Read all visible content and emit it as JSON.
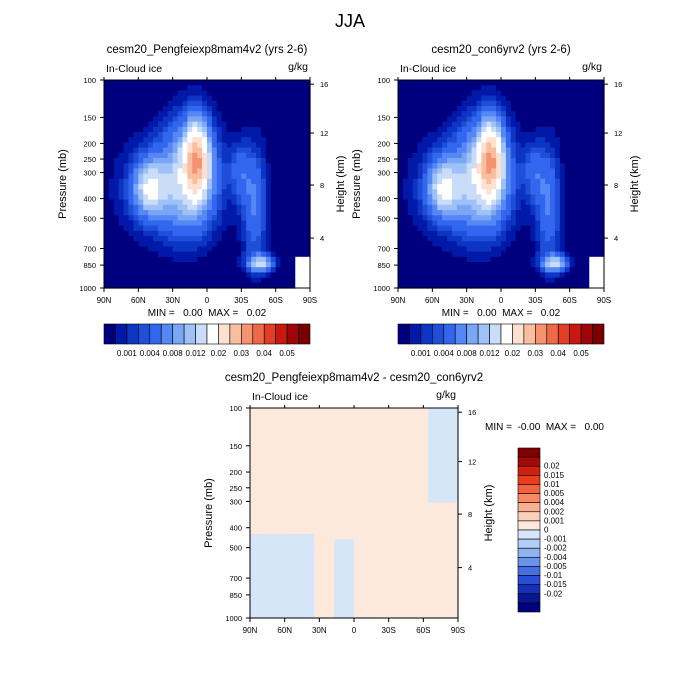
{
  "figure": {
    "title": "JJA",
    "variable_label": "In-Cloud ice",
    "units": "g/kg",
    "left_axis_label": "Pressure (mb)",
    "right_axis_label": "Height (km)"
  },
  "chart_data": [
    {
      "type": "heatmap",
      "title": "cesm20_Pengfeiexp8mam4v2 (yrs 2-6)",
      "subtitle_left": "In-Cloud ice",
      "subtitle_right": "g/kg",
      "ylabel": "Pressure (mb)",
      "ylabel_right": "Height (km)",
      "x_ticks": [
        "90N",
        "60N",
        "30N",
        "0",
        "30S",
        "60S",
        "90S"
      ],
      "y_ticks": [
        "100",
        "150",
        "200",
        "250",
        "300",
        "400",
        "500",
        "700",
        "850",
        "1000"
      ],
      "y_right_ticks": [
        "16",
        "12",
        "8",
        "4"
      ],
      "stats": "MIN =   0.00  MAX =   0.02",
      "colorbar": {
        "colors": [
          "#00007f",
          "#0019a8",
          "#0c35c4",
          "#1f4fd8",
          "#3366ee",
          "#5587f5",
          "#7aa6f6",
          "#a0c1f7",
          "#c9dcf8",
          "#ffffff",
          "#fde0cf",
          "#f9bea0",
          "#f39370",
          "#ec6a49",
          "#e23e24",
          "#c9180f",
          "#9e0508",
          "#7a0000"
        ],
        "labels": [
          "0.001",
          "0.004",
          "0.008",
          "0.012",
          "0.02",
          "0.03",
          "0.04",
          "0.05"
        ]
      }
    },
    {
      "type": "heatmap",
      "title": "cesm20_con6yrv2 (yrs 2-6)",
      "subtitle_left": "In-Cloud ice",
      "subtitle_right": "g/kg",
      "ylabel": "Pressure (mb)",
      "ylabel_right": "Height (km)",
      "x_ticks": [
        "90N",
        "60N",
        "30N",
        "0",
        "30S",
        "60S",
        "90S"
      ],
      "y_ticks": [
        "100",
        "150",
        "200",
        "250",
        "300",
        "400",
        "500",
        "700",
        "850",
        "1000"
      ],
      "y_right_ticks": [
        "16",
        "12",
        "8",
        "4"
      ],
      "stats": "MIN =   0.00  MAX =   0.02",
      "colorbar": {
        "colors": [
          "#00007f",
          "#0019a8",
          "#0c35c4",
          "#1f4fd8",
          "#3366ee",
          "#5587f5",
          "#7aa6f6",
          "#a0c1f7",
          "#c9dcf8",
          "#ffffff",
          "#fde0cf",
          "#f9bea0",
          "#f39370",
          "#ec6a49",
          "#e23e24",
          "#c9180f",
          "#9e0508",
          "#7a0000"
        ],
        "labels": [
          "0.001",
          "0.004",
          "0.008",
          "0.012",
          "0.02",
          "0.03",
          "0.04",
          "0.05"
        ]
      }
    },
    {
      "type": "heatmap",
      "title": "cesm20_Pengfeiexp8mam4v2 - cesm20_con6yrv2",
      "subtitle_left": "In-Cloud ice",
      "subtitle_right": "g/kg",
      "ylabel": "Pressure (mb)",
      "ylabel_right": "Height (km)",
      "x_ticks": [
        "90N",
        "60N",
        "30N",
        "0",
        "30S",
        "60S",
        "90S"
      ],
      "y_ticks": [
        "100",
        "150",
        "200",
        "250",
        "300",
        "400",
        "500",
        "700",
        "850",
        "1000"
      ],
      "y_right_ticks": [
        "16",
        "12",
        "8",
        "4"
      ],
      "stats": "MIN =  -0.00  MAX =   0.00",
      "colorbar": {
        "colors": [
          "#7f0000",
          "#a50a0a",
          "#d0210f",
          "#ea3d20",
          "#f4623c",
          "#f78a60",
          "#f9ae8e",
          "#fbd0b9",
          "#fde8dc",
          "#d5e6f8",
          "#b3cdf5",
          "#8fb2f1",
          "#6a93ec",
          "#476fe4",
          "#2a4dd6",
          "#1530b7",
          "#071891",
          "#00007f"
        ],
        "labels": [
          "0.02",
          "0.015",
          "0.01",
          "0.005",
          "0.004",
          "0.002",
          "0.001",
          "0",
          "-0.001",
          "-0.002",
          "-0.004",
          "-0.005",
          "-0.01",
          "-0.015",
          "-0.02"
        ]
      }
    }
  ]
}
